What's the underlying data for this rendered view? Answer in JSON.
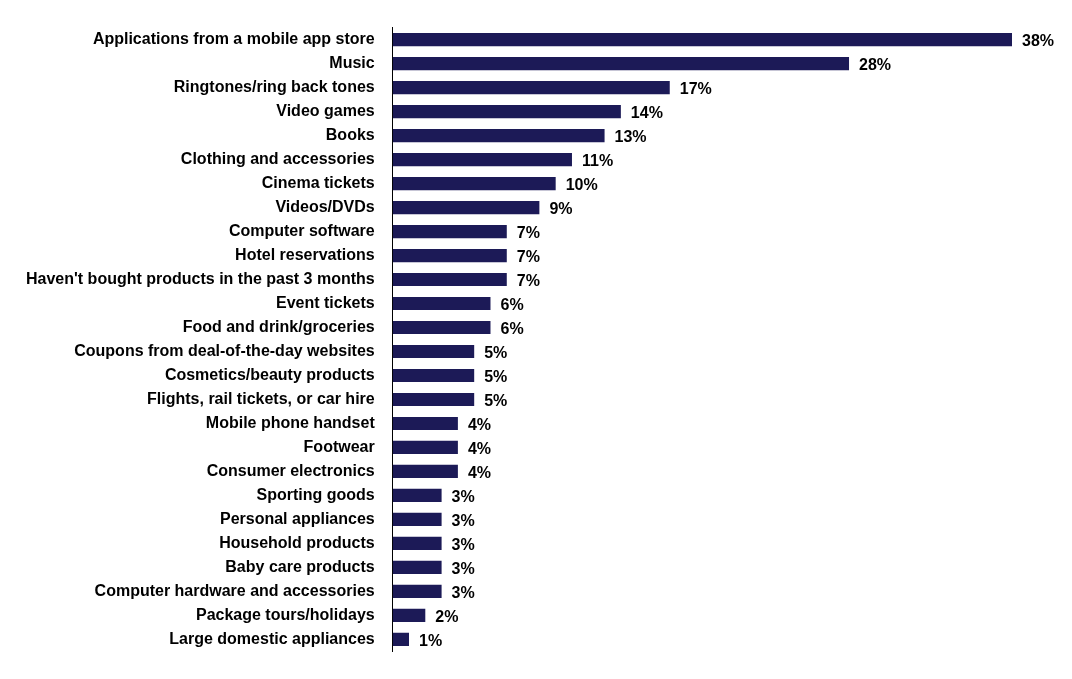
{
  "chart_data": {
    "type": "bar",
    "orientation": "horizontal",
    "categories": [
      "Applications from a mobile app store",
      "Music",
      "Ringtones/ring back tones",
      "Video games",
      "Books",
      "Clothing and accessories",
      "Cinema tickets",
      "Videos/DVDs",
      "Computer software",
      "Hotel reservations",
      "Haven't bought products in the past 3 months",
      "Event tickets",
      "Food and drink/groceries",
      "Coupons from deal-of-the-day websites",
      "Cosmetics/beauty products",
      "Flights, rail tickets, or car hire",
      "Mobile phone handset",
      "Footwear",
      "Consumer electronics",
      "Sporting goods",
      "Personal appliances",
      "Household products",
      "Baby care products",
      "Computer hardware and accessories",
      "Package tours/holidays",
      "Large domestic appliances"
    ],
    "values": [
      38,
      28,
      17,
      14,
      13,
      11,
      10,
      9,
      7,
      7,
      7,
      6,
      6,
      5,
      5,
      5,
      4,
      4,
      4,
      3,
      3,
      3,
      3,
      3,
      2,
      1
    ],
    "value_labels": [
      "38%",
      "28%",
      "17%",
      "14%",
      "13%",
      "11%",
      "10%",
      "9%",
      "7%",
      "7%",
      "7%",
      "6%",
      "6%",
      "5%",
      "5%",
      "5%",
      "4%",
      "4%",
      "4%",
      "3%",
      "3%",
      "3%",
      "3%",
      "3%",
      "2%",
      "1%"
    ],
    "color": "#1c1a57"
  }
}
